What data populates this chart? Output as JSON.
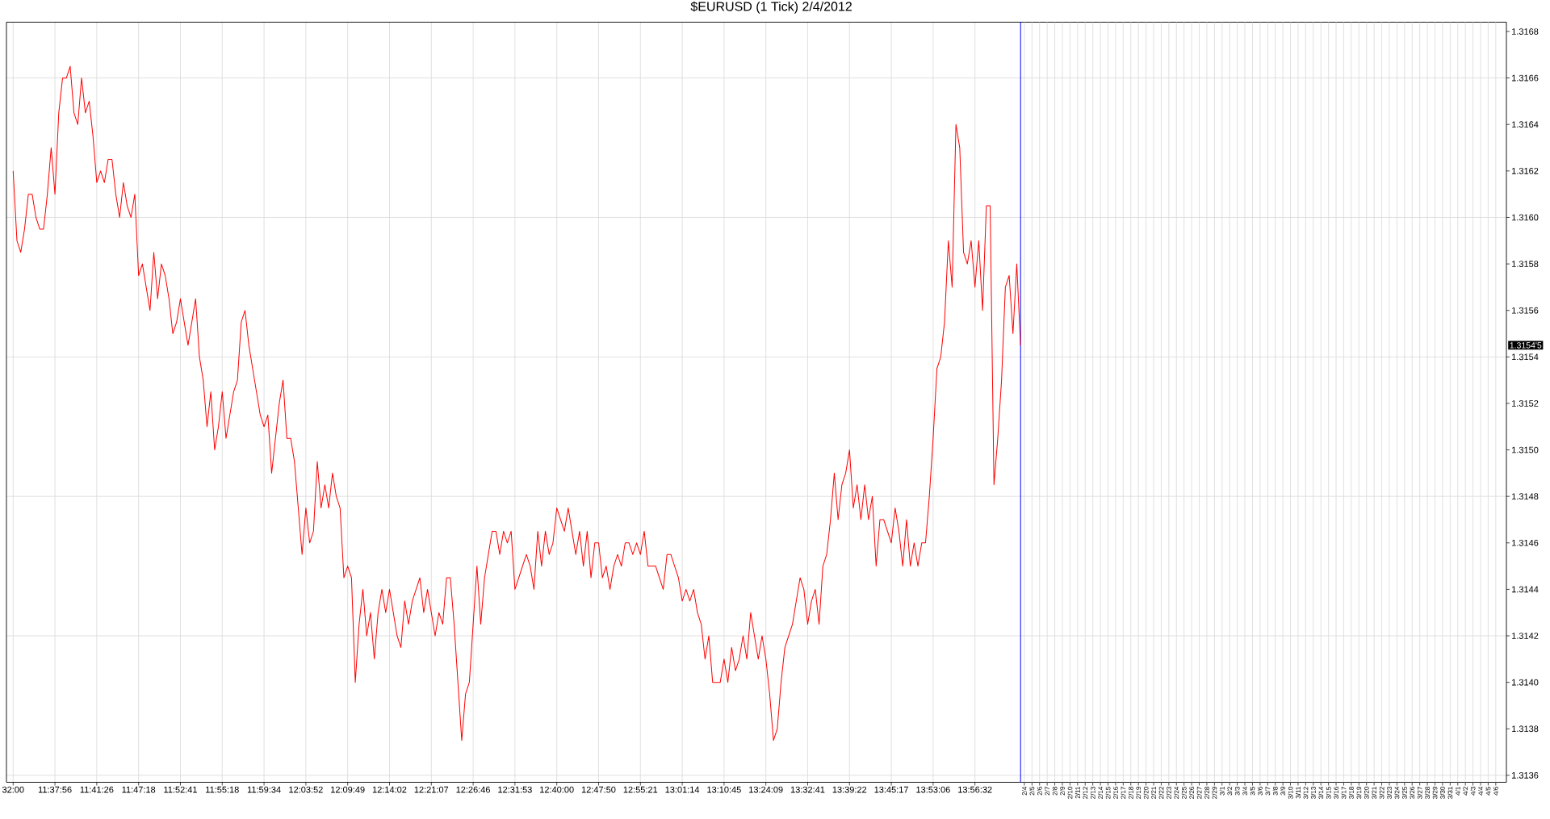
{
  "chart_data": {
    "type": "line",
    "title": "$EURUSD (1 Tick)  2/4/2012",
    "categories": [
      "32:00",
      null,
      null,
      null,
      null,
      null,
      null,
      null,
      null,
      null,
      null,
      "11:37:56",
      null,
      null,
      null,
      null,
      null,
      null,
      null,
      null,
      null,
      null,
      "11:41:26",
      null,
      null,
      null,
      null,
      null,
      null,
      null,
      null,
      null,
      null,
      "11:47:18",
      null,
      null,
      null,
      null,
      null,
      null,
      null,
      null,
      null,
      null,
      "11:52:41",
      null,
      null,
      null,
      null,
      null,
      null,
      null,
      null,
      null,
      null,
      "11:55:18",
      null,
      null,
      null,
      null,
      null,
      null,
      null,
      null,
      null,
      null,
      "11:59:34",
      null,
      null,
      null,
      null,
      null,
      null,
      null,
      null,
      null,
      null,
      "12:03:52",
      null,
      null,
      null,
      null,
      null,
      null,
      null,
      null,
      null,
      null,
      "12:09:49",
      null,
      null,
      null,
      null,
      null,
      null,
      null,
      null,
      null,
      null,
      "12:14:02",
      null,
      null,
      null,
      null,
      null,
      null,
      null,
      null,
      null,
      null,
      "12:21:07",
      null,
      null,
      null,
      null,
      null,
      null,
      null,
      null,
      null,
      null,
      "12:26:46",
      null,
      null,
      null,
      null,
      null,
      null,
      null,
      null,
      null,
      null,
      "12:31:53",
      null,
      null,
      null,
      null,
      null,
      null,
      null,
      null,
      null,
      null,
      "12:40:00",
      null,
      null,
      null,
      null,
      null,
      null,
      null,
      null,
      null,
      null,
      "12:47:50",
      null,
      null,
      null,
      null,
      null,
      null,
      null,
      null,
      null,
      null,
      "12:55:21",
      null,
      null,
      null,
      null,
      null,
      null,
      null,
      null,
      null,
      null,
      "13:01:14",
      null,
      null,
      null,
      null,
      null,
      null,
      null,
      null,
      null,
      null,
      "13:10:45",
      null,
      null,
      null,
      null,
      null,
      null,
      null,
      null,
      null,
      null,
      "13:24:09",
      null,
      null,
      null,
      null,
      null,
      null,
      null,
      null,
      null,
      null,
      "13:32:41",
      null,
      null,
      null,
      null,
      null,
      null,
      null,
      null,
      null,
      null,
      "13:39:22",
      null,
      null,
      null,
      null,
      null,
      null,
      null,
      null,
      null,
      null,
      "13:45:17",
      null,
      null,
      null,
      null,
      null,
      null,
      null,
      null,
      null,
      null,
      "13:53:06",
      null,
      null,
      null,
      null,
      null,
      null,
      null,
      null,
      null,
      null,
      "13:56:32",
      null,
      null,
      null,
      null,
      null,
      null,
      null,
      null,
      null,
      null,
      null,
      null,
      "2/4",
      null,
      "2/5",
      null,
      "2/6",
      null,
      "2/7",
      null,
      "2/8",
      null,
      "2/9",
      null,
      "2/10",
      null,
      "2/11",
      null,
      "2/12",
      null,
      "2/13",
      null,
      "2/14",
      null,
      "2/15",
      null,
      "2/16",
      null,
      "2/17",
      null,
      "2/18",
      null,
      "2/19",
      null,
      "2/20",
      null,
      "2/21",
      null,
      "2/22",
      null,
      "2/23",
      null,
      "2/24",
      null,
      "2/25",
      null,
      "2/26",
      null,
      "2/27",
      null,
      "2/28",
      null,
      "2/29",
      null,
      "3/1",
      null,
      "3/2",
      null,
      "3/3",
      null,
      "3/4",
      null,
      "3/5",
      null,
      "3/6",
      null,
      "3/7",
      null,
      "3/8",
      null,
      "3/9",
      null,
      "3/10",
      null,
      "3/11",
      null,
      "3/12",
      null,
      "3/13",
      null,
      "3/14",
      null,
      "3/15",
      null,
      "3/16",
      null,
      "3/17",
      null,
      "3/18",
      null,
      "3/19",
      null,
      "3/20",
      null,
      "3/21",
      null,
      "3/22",
      null,
      "3/23",
      null,
      "3/24",
      null,
      "3/25",
      null,
      "3/26",
      null,
      "3/27",
      null,
      "3/28",
      null,
      "3/29",
      null,
      "3/30",
      null,
      "3/31",
      null,
      "4/1",
      null,
      "4/2",
      null,
      "4/3",
      null,
      "4/4",
      null,
      "4/5",
      null,
      "4/6"
    ],
    "series": [
      {
        "color": "#ff0000",
        "values": [
          1.3162,
          1.3159,
          1.31585,
          1.31595,
          1.3161,
          1.3161,
          1.316,
          1.31595,
          1.31595,
          1.3161,
          1.3163,
          1.3161,
          1.31645,
          1.3166,
          1.3166,
          1.31665,
          1.31645,
          1.3164,
          1.3166,
          1.31645,
          1.3165,
          1.31635,
          1.31615,
          1.3162,
          1.31615,
          1.31625,
          1.31625,
          1.3161,
          1.316,
          1.31615,
          1.31605,
          1.316,
          1.3161,
          1.31575,
          1.3158,
          1.3157,
          1.3156,
          1.31585,
          1.31565,
          1.3158,
          1.31575,
          1.31565,
          1.3155,
          1.31555,
          1.31565,
          1.31555,
          1.31545,
          1.31555,
          1.31565,
          1.3154,
          1.3153,
          1.3151,
          1.31525,
          1.315,
          1.3151,
          1.31525,
          1.31505,
          1.31515,
          1.31525,
          1.3153,
          1.31555,
          1.3156,
          1.31545,
          1.31535,
          1.31525,
          1.31515,
          1.3151,
          1.31515,
          1.3149,
          1.31505,
          1.3152,
          1.3153,
          1.31505,
          1.31505,
          1.31495,
          1.31475,
          1.31455,
          1.31475,
          1.3146,
          1.31465,
          1.31495,
          1.31475,
          1.31485,
          1.31475,
          1.3149,
          1.3148,
          1.31475,
          1.31445,
          1.3145,
          1.31445,
          1.314,
          1.31425,
          1.3144,
          1.3142,
          1.3143,
          1.3141,
          1.3143,
          1.3144,
          1.3143,
          1.3144,
          1.3143,
          1.3142,
          1.31415,
          1.31435,
          1.31425,
          1.31435,
          1.3144,
          1.31445,
          1.3143,
          1.3144,
          1.3143,
          1.3142,
          1.3143,
          1.31425,
          1.31445,
          1.31445,
          1.31425,
          1.314,
          1.31375,
          1.31395,
          1.314,
          1.31425,
          1.3145,
          1.31425,
          1.31445,
          1.31455,
          1.31465,
          1.31465,
          1.31455,
          1.31465,
          1.3146,
          1.31465,
          1.3144,
          1.31445,
          1.3145,
          1.31455,
          1.3145,
          1.3144,
          1.31465,
          1.3145,
          1.31465,
          1.31455,
          1.3146,
          1.31475,
          1.3147,
          1.31465,
          1.31475,
          1.31465,
          1.31455,
          1.31465,
          1.3145,
          1.31465,
          1.31445,
          1.3146,
          1.3146,
          1.31445,
          1.3145,
          1.3144,
          1.3145,
          1.31455,
          1.3145,
          1.3146,
          1.3146,
          1.31455,
          1.3146,
          1.31455,
          1.31465,
          1.3145,
          1.3145,
          1.3145,
          1.31445,
          1.3144,
          1.31455,
          1.31455,
          1.3145,
          1.31445,
          1.31435,
          1.3144,
          1.31435,
          1.3144,
          1.3143,
          1.31425,
          1.3141,
          1.3142,
          1.314,
          1.314,
          1.314,
          1.3141,
          1.314,
          1.31415,
          1.31405,
          1.3141,
          1.3142,
          1.3141,
          1.3143,
          1.3142,
          1.3141,
          1.3142,
          1.3141,
          1.31395,
          1.31375,
          1.3138,
          1.314,
          1.31415,
          1.3142,
          1.31425,
          1.31435,
          1.31445,
          1.3144,
          1.31425,
          1.31435,
          1.3144,
          1.31425,
          1.3145,
          1.31455,
          1.3147,
          1.3149,
          1.3147,
          1.31485,
          1.3149,
          1.315,
          1.31475,
          1.31485,
          1.3147,
          1.31485,
          1.3147,
          1.3148,
          1.3145,
          1.3147,
          1.3147,
          1.31465,
          1.3146,
          1.31475,
          1.31465,
          1.3145,
          1.3147,
          1.3145,
          1.3146,
          1.3145,
          1.3146,
          1.3146,
          1.3148,
          1.31505,
          1.31535,
          1.3154,
          1.31555,
          1.3159,
          1.3157,
          1.3164,
          1.3163,
          1.31585,
          1.3158,
          1.3159,
          1.3157,
          1.3159,
          1.3156,
          1.31605,
          1.31605,
          1.31485,
          1.31505,
          1.3153,
          1.3157,
          1.31575,
          1.3155,
          1.3158,
          1.31545,
          null,
          null,
          null,
          null,
          null,
          null,
          null,
          null,
          null,
          null,
          null,
          null,
          null,
          null,
          null,
          null,
          null,
          null,
          null,
          null,
          null,
          null,
          null,
          null,
          null,
          null,
          null,
          null,
          null,
          null,
          null,
          null,
          null,
          null,
          null,
          null,
          null,
          null,
          null,
          null,
          null,
          null,
          null,
          null,
          null,
          null,
          null,
          null,
          null,
          null,
          null,
          null,
          null,
          null,
          null,
          null,
          null,
          null,
          null,
          null,
          null,
          null,
          null,
          null,
          null,
          null,
          null,
          null,
          null,
          null,
          null,
          null,
          null,
          null,
          null,
          null,
          null,
          null,
          null,
          null,
          null,
          null,
          null,
          null,
          null,
          null,
          null,
          null,
          null,
          null,
          null,
          null,
          null,
          null,
          null,
          null,
          null,
          null,
          null,
          null,
          null,
          null,
          null,
          null,
          null,
          null,
          null,
          null,
          null,
          null,
          null,
          null,
          null,
          null,
          null,
          null,
          null,
          null,
          null,
          null,
          null,
          null,
          null,
          null,
          null
        ]
      }
    ],
    "ylim": [
      1.31357,
      1.31684
    ],
    "yticks": [
      1.3136,
      1.3138,
      {
        "value": 1.314,
        "label": "1.3140"
      },
      1.3142,
      1.3144,
      1.3146,
      1.3148,
      {
        "value": 1.315,
        "label": "1.3150"
      },
      1.3152,
      1.3154,
      1.3156,
      1.3158,
      {
        "value": 1.316,
        "label": "1.3160"
      },
      1.3162,
      1.3164,
      1.3166,
      1.3168
    ],
    "grid": true,
    "annotations": [
      "1.3154'5"
    ]
  }
}
